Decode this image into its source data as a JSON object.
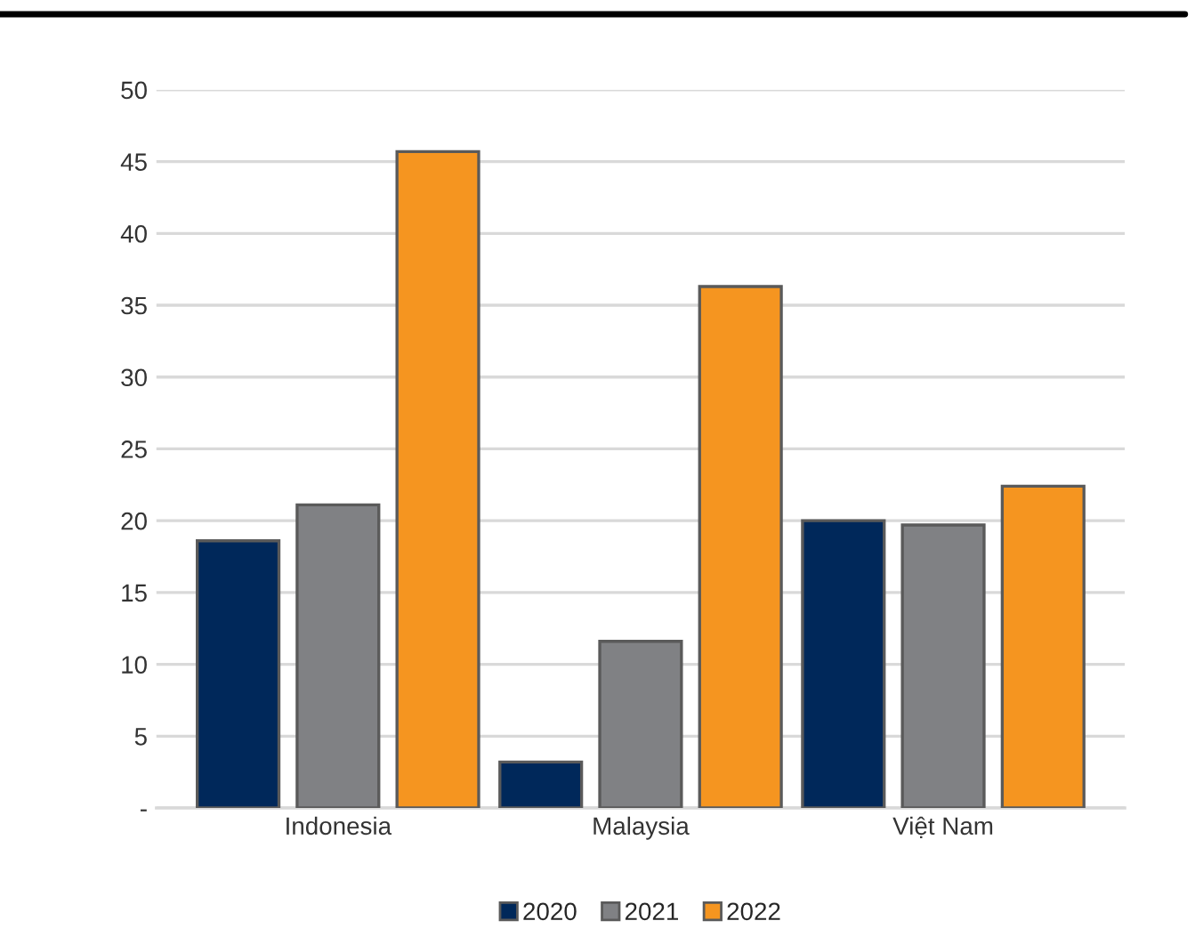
{
  "chart_data": {
    "type": "bar",
    "categories": [
      "Indonesia",
      "Malaysia",
      "Việt Nam"
    ],
    "series": [
      {
        "name": "2020",
        "color": "#00285a",
        "values": [
          18.6,
          3.2,
          20.0
        ]
      },
      {
        "name": "2021",
        "color": "#808184",
        "values": [
          21.1,
          11.6,
          19.7
        ]
      },
      {
        "name": "2022",
        "color": "#f59520",
        "values": [
          45.7,
          36.3,
          22.4
        ]
      }
    ],
    "ylim": [
      0,
      50
    ],
    "yticks": [
      {
        "value": 0,
        "label": "-"
      },
      5,
      10,
      15,
      20,
      25,
      30,
      35,
      40,
      45,
      50
    ],
    "grid": "y",
    "legend": "bottom"
  }
}
